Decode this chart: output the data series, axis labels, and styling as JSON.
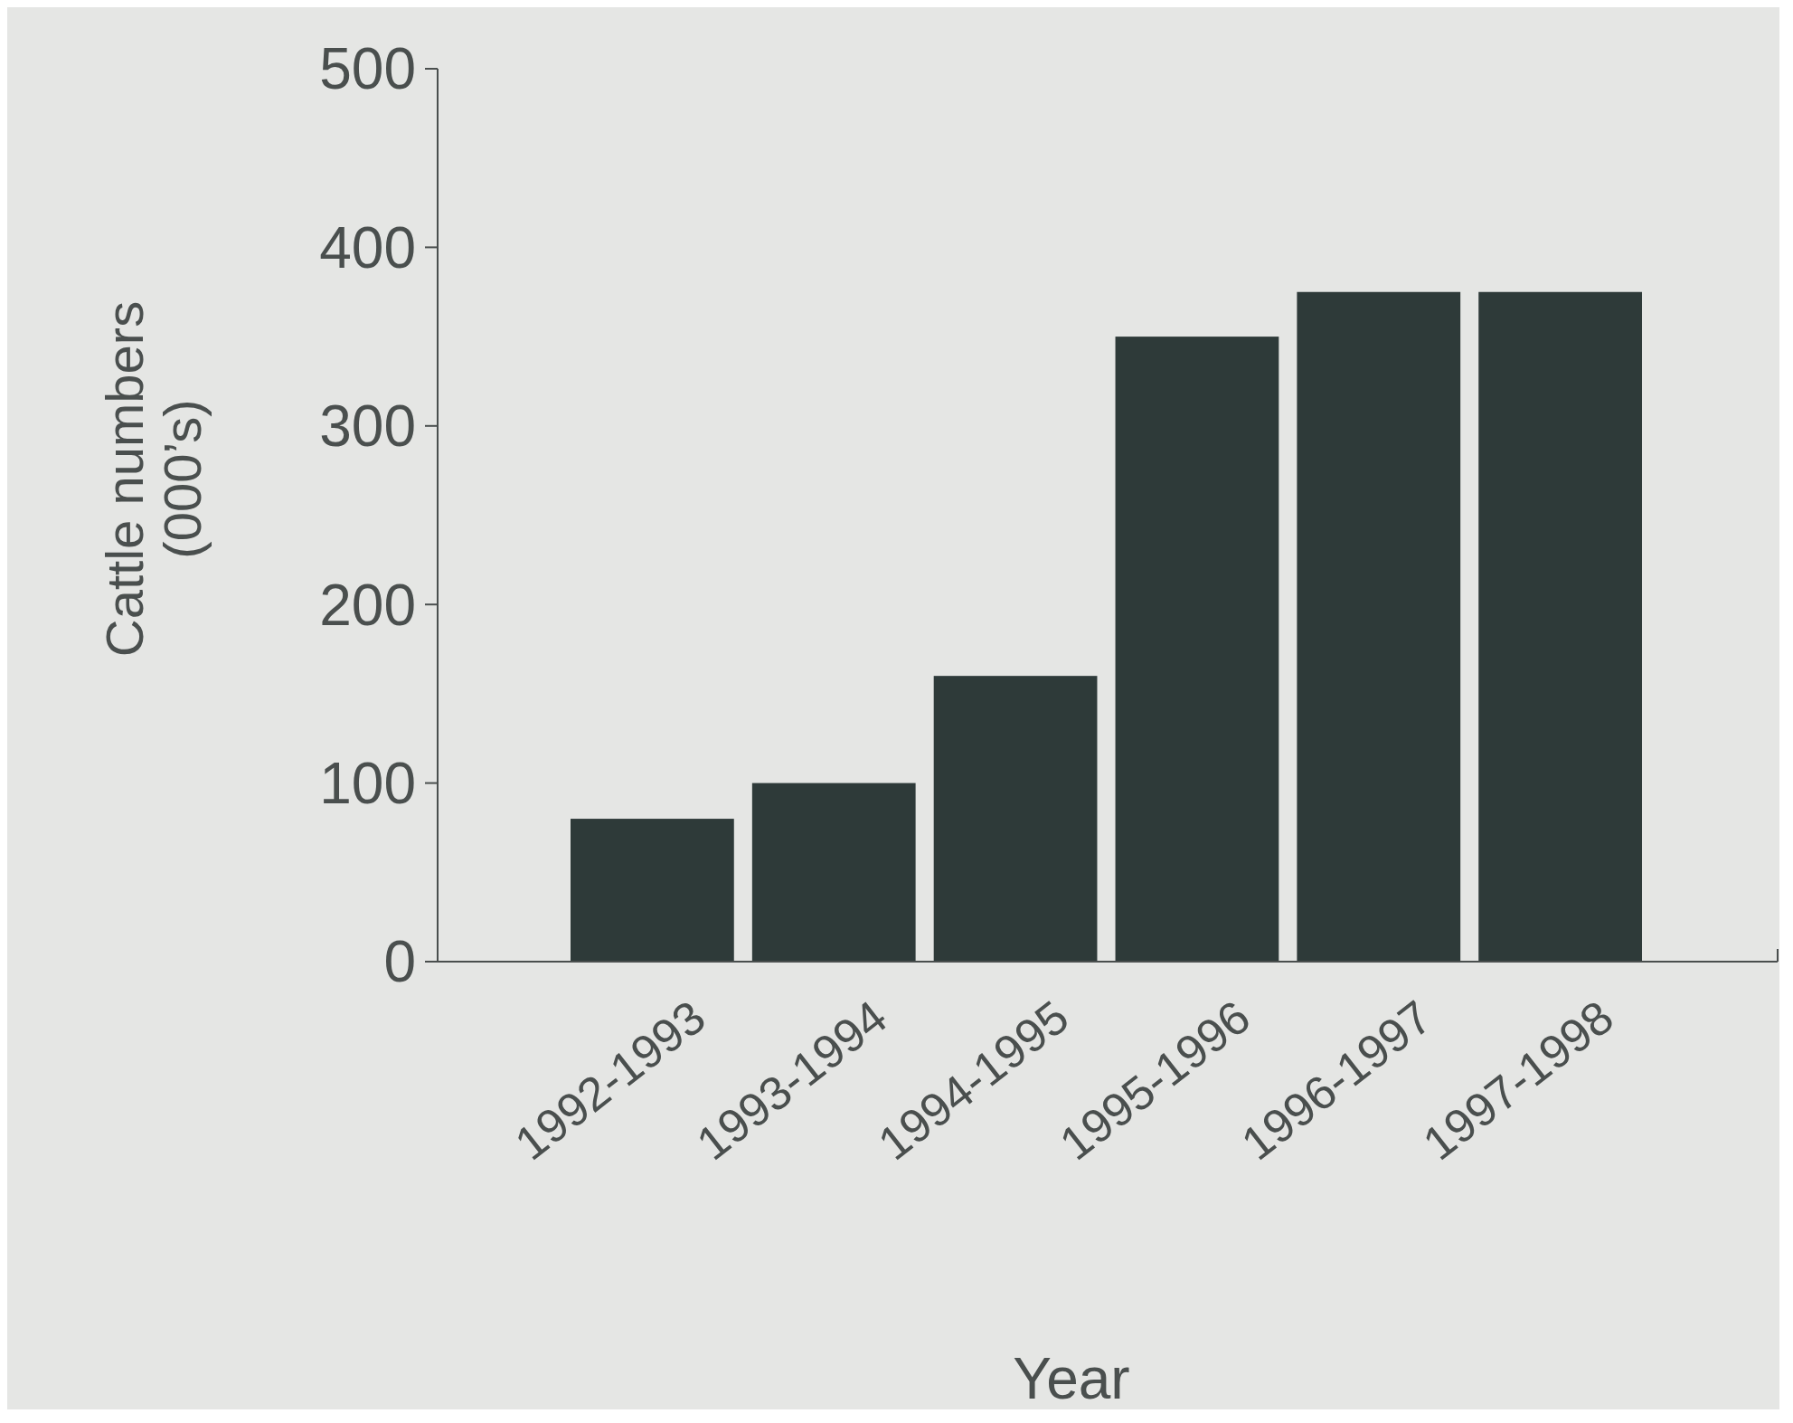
{
  "chart_data": {
    "type": "bar",
    "xlabel": "Year",
    "ylabel": "Cattle numbers\n(000’s)",
    "categories": [
      "1992-1993",
      "1993-1994",
      "1994-1995",
      "1995-1996",
      "1996-1997",
      "1997-1998"
    ],
    "values": [
      80,
      100,
      160,
      350,
      375,
      375
    ],
    "color": "#2e3a39",
    "ylim": [
      0,
      500
    ],
    "yticks": [
      0,
      100,
      200,
      300,
      400,
      500
    ],
    "grid": false
  }
}
